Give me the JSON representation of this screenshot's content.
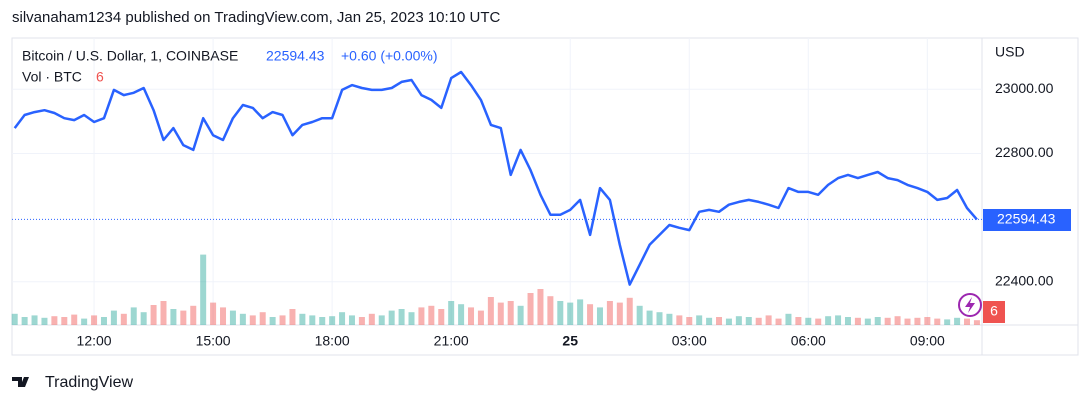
{
  "attribution": "silvanaham1234 published on TradingView.com, Jan 25, 2023 10:10 UTC",
  "footer": "TradingView",
  "chart_data": {
    "type": "line",
    "change": "+0.60 (+0.00%)",
    "currency": "USD",
    "categories": [
      null,
      null,
      null,
      null,
      null,
      null,
      null,
      null,
      "12:00",
      null,
      null,
      null,
      null,
      null,
      null,
      null,
      null,
      null,
      null,
      null,
      "15:00",
      null,
      null,
      null,
      null,
      null,
      null,
      null,
      null,
      null,
      null,
      null,
      "18:00",
      null,
      null,
      null,
      null,
      null,
      null,
      null,
      null,
      null,
      null,
      null,
      "21:00",
      null,
      null,
      null,
      null,
      null,
      null,
      null,
      null,
      null,
      null,
      null,
      "25",
      null,
      null,
      null,
      null,
      null,
      null,
      null,
      null,
      null,
      null,
      null,
      "03:00",
      null,
      null,
      null,
      null,
      null,
      null,
      null,
      null,
      null,
      null,
      null,
      "06:00",
      null,
      null,
      null,
      null,
      null,
      null,
      null,
      null,
      null,
      null,
      null,
      "09:00",
      null,
      null,
      null,
      null,
      null
    ],
    "series": [
      {
        "name": "Bitcoin / U.S. Dollar, 1, COINBASE",
        "color": "#2962ff",
        "values": [
          22879,
          22920,
          22929,
          22935,
          22926,
          22910,
          22904,
          22920,
          22898,
          22910,
          22998,
          22982,
          22989,
          23004,
          22935,
          22842,
          22879,
          22826,
          22811,
          22910,
          22857,
          22842,
          22910,
          22951,
          22942,
          22910,
          22929,
          22920,
          22857,
          22889,
          22898,
          22910,
          22910,
          22998,
          23013,
          23004,
          22998,
          22998,
          23004,
          23023,
          23029,
          22982,
          22967,
          22942,
          23035,
          23054,
          23013,
          22967,
          22889,
          22879,
          22733,
          22811,
          22748,
          22671,
          22609,
          22609,
          22624,
          22655,
          22546,
          22692,
          22655,
          22515,
          22391,
          22453,
          22515,
          22546,
          22577,
          22568,
          22561,
          22618,
          22624,
          22618,
          22640,
          22649,
          22655,
          22649,
          22640,
          22630,
          22692,
          22680,
          22680,
          22671,
          22702,
          22723,
          22733,
          22723,
          22733,
          22742,
          22723,
          22717,
          22702,
          22692,
          22680,
          22655,
          22661,
          22686,
          22630,
          22594.43
        ]
      }
    ],
    "volume": {
      "name": "Vol · BTC",
      "up_color": "#26a69a",
      "down_color": "#ef5350",
      "values": [
        14,
        10,
        12,
        9,
        11,
        10,
        13,
        8,
        12,
        10,
        18,
        14,
        22,
        16,
        25,
        30,
        20,
        18,
        24,
        88,
        28,
        22,
        18,
        14,
        12,
        16,
        10,
        12,
        20,
        14,
        12,
        10,
        11,
        16,
        12,
        10,
        14,
        12,
        18,
        20,
        16,
        22,
        24,
        20,
        30,
        26,
        22,
        18,
        35,
        28,
        30,
        24,
        40,
        45,
        36,
        30,
        28,
        32,
        26,
        22,
        30,
        28,
        34,
        24,
        18,
        16,
        14,
        12,
        10,
        12,
        9,
        10,
        8,
        11,
        10,
        9,
        12,
        8,
        14,
        10,
        9,
        8,
        11,
        12,
        10,
        9,
        8,
        10,
        9,
        11,
        8,
        9,
        10,
        8,
        7,
        9,
        8,
        6
      ]
    },
    "ylim": [
      22265,
      23160
    ],
    "yticks": [
      {
        "value": 22400,
        "label": "22400.00"
      },
      {
        "value": 22800,
        "label": "22800.00"
      },
      {
        "value": 23000,
        "label": "23000.00"
      }
    ],
    "grid": true
  }
}
